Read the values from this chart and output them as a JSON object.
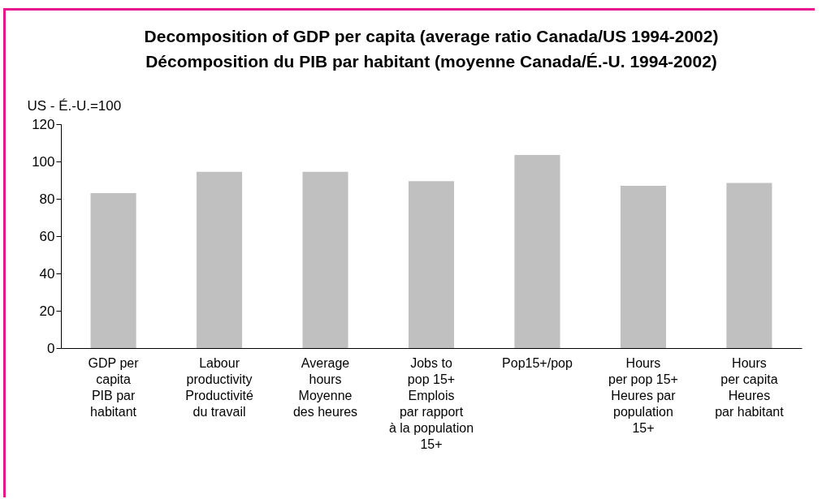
{
  "chart_data": {
    "type": "bar",
    "title": "Decomposition of GDP per capita (average ratio Canada/US  1994-2002)\nDécomposition du PIB par habitant (moyenne Canada/É.-U. 1994-2002)",
    "ylabel": "US - É.-U.=100",
    "categories": [
      "GDP per\ncapita\nPIB par\nhabitant",
      "Labour\nproductivity\nProductivité\ndu travail",
      "Average\nhours\nMoyenne\ndes heures",
      "Jobs to\npop 15+\nEmplois\npar rapport\nà la population\n15+",
      "Pop15+/pop",
      "Hours\nper pop 15+\nHeures par\npopulation\n15+",
      "Hours\nper capita\nHeures\npar habitant"
    ],
    "values": [
      83,
      94.5,
      94.5,
      89.5,
      103.5,
      87,
      88.5
    ],
    "color": "#c0c0c0",
    "ylim": [
      0,
      120
    ],
    "yticks": [
      0,
      20,
      40,
      60,
      80,
      100,
      120
    ],
    "grid": false
  }
}
